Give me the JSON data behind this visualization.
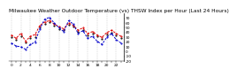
{
  "title": "Milwaukee Weather Outdoor Temperature (vs) THSW Index per Hour (Last 24 Hours)",
  "hours": [
    0,
    1,
    2,
    3,
    4,
    5,
    6,
    7,
    8,
    9,
    10,
    11,
    12,
    13,
    14,
    15,
    16,
    17,
    18,
    19,
    20,
    21,
    22,
    23
  ],
  "outdoor_temp": [
    35,
    28,
    38,
    22,
    32,
    36,
    55,
    62,
    65,
    58,
    52,
    48,
    60,
    55,
    45,
    50,
    38,
    42,
    35,
    30,
    40,
    45,
    38,
    32
  ],
  "thsw_index": [
    18,
    12,
    10,
    5,
    15,
    20,
    48,
    68,
    72,
    60,
    50,
    42,
    65,
    58,
    38,
    44,
    28,
    32,
    22,
    15,
    30,
    38,
    25,
    18
  ],
  "black_dots": [
    30,
    25,
    32,
    20,
    28,
    30,
    50,
    58,
    62,
    55,
    48,
    45,
    56,
    52,
    42,
    46,
    35,
    38,
    32,
    27,
    36,
    40,
    35,
    28
  ],
  "temp_color": "#dd0000",
  "thsw_color": "#0000cc",
  "black_color": "#111111",
  "bg_color": "#ffffff",
  "grid_color": "#aaaaaa",
  "ylim": [
    -20,
    80
  ],
  "ytick_vals": [
    70,
    60,
    50,
    40,
    30,
    20,
    10,
    0,
    -10,
    -20
  ],
  "ytick_labels": [
    "70",
    "60",
    "50",
    "40",
    "30",
    "20",
    "10",
    "0",
    "-10",
    "-20"
  ],
  "xtick_vals": [
    0,
    1,
    2,
    3,
    4,
    5,
    6,
    7,
    8,
    9,
    10,
    11,
    12,
    13,
    14,
    15,
    16,
    17,
    18,
    19,
    20,
    21,
    22,
    23
  ],
  "grid_x_vals": [
    0,
    2,
    4,
    6,
    8,
    10,
    12,
    14,
    16,
    18,
    20,
    22
  ],
  "title_fontsize": 4.2,
  "tick_fontsize": 3.2,
  "line_width": 0.7
}
